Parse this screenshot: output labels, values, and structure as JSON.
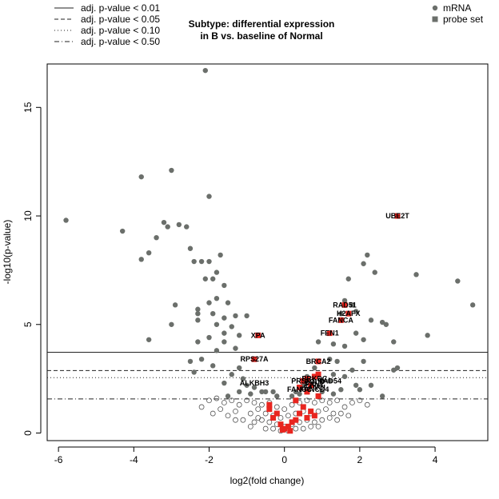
{
  "chart_data": {
    "type": "scatter",
    "title_lines": [
      "Subtype: differential expression",
      "in B vs. baseline of Normal"
    ],
    "xlabel": "log2(fold change)",
    "ylabel": "-log10(p-value)",
    "xlim": [
      -6.3,
      5.4
    ],
    "ylim": [
      -0.35,
      17.0
    ],
    "xticks": [
      "-6",
      "-4",
      "-2",
      "0",
      "2",
      "4"
    ],
    "yticks": [
      "0",
      "5",
      "10",
      "15"
    ],
    "threshold_legend": {
      "position": "top-left",
      "entries": [
        {
          "label": "adj. p-value < 0.01",
          "style": "solid"
        },
        {
          "label": "adj. p-value < 0.05",
          "style": "dashed"
        },
        {
          "label": "adj. p-value < 0.10",
          "style": "dotted"
        },
        {
          "label": "adj. p-value < 0.50",
          "style": "dotdash"
        }
      ]
    },
    "threshold_lines": [
      {
        "y": 3.72,
        "style": "solid"
      },
      {
        "y": 2.88,
        "style": "dashed"
      },
      {
        "y": 2.55,
        "style": "dotted"
      },
      {
        "y": 1.57,
        "style": "dotdash"
      }
    ],
    "type_legend": {
      "position": "top-right",
      "entries": [
        {
          "label": "mRNA",
          "marker": "circle"
        },
        {
          "label": "probe set",
          "marker": "square"
        }
      ]
    },
    "colors": {
      "mrna_filled": "#6b6f6b",
      "mrna_open": "#555555",
      "highlight": "#e8251f",
      "axis": "#000000"
    },
    "series": [
      {
        "name": "mRNA",
        "marker": "circle",
        "points": [
          [
            -2.1,
            16.7
          ],
          [
            -5.8,
            9.8
          ],
          [
            -3.8,
            11.8
          ],
          [
            -3.0,
            12.1
          ],
          [
            -2.0,
            10.9
          ],
          [
            -4.3,
            9.3
          ],
          [
            -3.2,
            9.7
          ],
          [
            -3.1,
            9.5
          ],
          [
            -2.8,
            9.6
          ],
          [
            -2.6,
            9.5
          ],
          [
            -3.4,
            9.0
          ],
          [
            -3.6,
            8.3
          ],
          [
            -3.8,
            8.0
          ],
          [
            -2.5,
            8.5
          ],
          [
            -1.7,
            8.2
          ],
          [
            -2.4,
            7.9
          ],
          [
            -2.2,
            7.9
          ],
          [
            -2.0,
            7.9
          ],
          [
            -1.8,
            7.4
          ],
          [
            -2.1,
            7.1
          ],
          [
            -1.9,
            7.1
          ],
          [
            -1.6,
            6.8
          ],
          [
            -1.8,
            6.2
          ],
          [
            -2.0,
            6.0
          ],
          [
            -2.9,
            5.9
          ],
          [
            -1.5,
            6.0
          ],
          [
            -2.3,
            5.7
          ],
          [
            -1.9,
            5.5
          ],
          [
            -2.3,
            5.5
          ],
          [
            -1.6,
            5.3
          ],
          [
            -1.3,
            5.4
          ],
          [
            -1.0,
            5.4
          ],
          [
            -2.3,
            5.2
          ],
          [
            -1.8,
            5.0
          ],
          [
            -1.4,
            4.9
          ],
          [
            -3.0,
            5.0
          ],
          [
            -1.6,
            4.6
          ],
          [
            -1.2,
            4.5
          ],
          [
            -2.0,
            4.4
          ],
          [
            -1.6,
            4.2
          ],
          [
            -2.3,
            4.2
          ],
          [
            -3.6,
            4.3
          ],
          [
            -1.3,
            3.9
          ],
          [
            -1.8,
            3.8
          ],
          [
            -2.5,
            3.3
          ],
          [
            -2.2,
            3.4
          ],
          [
            -1.9,
            3.1
          ],
          [
            -1.2,
            3.0
          ],
          [
            -2.4,
            2.8
          ],
          [
            -1.4,
            2.7
          ],
          [
            -1.1,
            2.5
          ],
          [
            -1.6,
            2.3
          ],
          [
            -1.0,
            2.2
          ],
          [
            -0.8,
            2.1
          ],
          [
            -1.2,
            1.9
          ],
          [
            -0.9,
            1.8
          ],
          [
            -0.6,
            1.9
          ],
          [
            -1.5,
            1.7
          ],
          [
            2.2,
            8.2
          ],
          [
            2.1,
            7.8
          ],
          [
            2.4,
            7.4
          ],
          [
            1.7,
            7.1
          ],
          [
            3.5,
            7.3
          ],
          [
            4.6,
            7.0
          ],
          [
            5.0,
            5.9
          ],
          [
            1.6,
            6.1
          ],
          [
            1.8,
            5.9
          ],
          [
            1.5,
            5.5
          ],
          [
            1.9,
            5.6
          ],
          [
            2.3,
            5.2
          ],
          [
            2.6,
            5.1
          ],
          [
            2.7,
            5.0
          ],
          [
            3.8,
            4.5
          ],
          [
            2.9,
            4.2
          ],
          [
            1.9,
            4.6
          ],
          [
            2.1,
            4.3
          ],
          [
            1.6,
            4.0
          ],
          [
            1.3,
            4.1
          ],
          [
            0.9,
            4.2
          ],
          [
            1.2,
            3.4
          ],
          [
            1.4,
            3.3
          ],
          [
            2.1,
            3.3
          ],
          [
            3.0,
            3.0
          ],
          [
            2.9,
            2.9
          ],
          [
            1.8,
            2.9
          ],
          [
            1.6,
            2.6
          ],
          [
            1.3,
            2.7
          ],
          [
            1.2,
            2.4
          ],
          [
            1.9,
            2.2
          ],
          [
            2.0,
            2.0
          ],
          [
            2.3,
            2.2
          ],
          [
            1.5,
            2.0
          ],
          [
            1.0,
            1.9
          ],
          [
            1.3,
            1.8
          ],
          [
            2.6,
            1.7
          ],
          [
            0.8,
            3.0
          ],
          [
            0.6,
            2.6
          ],
          [
            0.5,
            2.2
          ],
          [
            1.0,
            2.4
          ],
          [
            0.4,
            1.8
          ],
          [
            -0.5,
            1.9
          ],
          [
            -0.3,
            1.9
          ],
          [
            -0.2,
            1.7
          ],
          [
            0.2,
            1.7
          ],
          [
            0.3,
            1.9
          ]
        ],
        "open_points": [
          [
            -2.0,
            1.5
          ],
          [
            -1.8,
            1.6
          ],
          [
            -1.6,
            1.4
          ],
          [
            -1.4,
            1.5
          ],
          [
            -1.2,
            1.3
          ],
          [
            -1.0,
            1.5
          ],
          [
            -0.8,
            1.4
          ],
          [
            -0.6,
            1.3
          ],
          [
            -0.4,
            1.4
          ],
          [
            -0.2,
            1.2
          ],
          [
            0.0,
            1.1
          ],
          [
            0.2,
            1.3
          ],
          [
            0.4,
            1.4
          ],
          [
            0.6,
            1.5
          ],
          [
            0.8,
            1.4
          ],
          [
            1.0,
            1.5
          ],
          [
            1.2,
            1.4
          ],
          [
            1.4,
            1.5
          ],
          [
            1.6,
            1.2
          ],
          [
            1.8,
            1.4
          ],
          [
            2.0,
            1.5
          ],
          [
            -1.7,
            1.1
          ],
          [
            -1.3,
            1.0
          ],
          [
            -0.9,
            0.9
          ],
          [
            -0.7,
            1.1
          ],
          [
            -0.5,
            0.9
          ],
          [
            -0.3,
            0.8
          ],
          [
            -0.1,
            0.7
          ],
          [
            0.1,
            0.8
          ],
          [
            0.3,
            0.9
          ],
          [
            0.5,
            1.0
          ],
          [
            0.7,
            0.9
          ],
          [
            0.9,
            1.0
          ],
          [
            1.1,
            1.1
          ],
          [
            1.3,
            0.9
          ],
          [
            1.5,
            0.9
          ],
          [
            -1.1,
            0.6
          ],
          [
            -0.8,
            0.5
          ],
          [
            -0.6,
            0.6
          ],
          [
            -0.4,
            0.5
          ],
          [
            -0.2,
            0.4
          ],
          [
            0.0,
            0.3
          ],
          [
            0.2,
            0.4
          ],
          [
            0.4,
            0.5
          ],
          [
            0.6,
            0.6
          ],
          [
            0.8,
            0.5
          ],
          [
            1.0,
            0.6
          ],
          [
            1.2,
            0.7
          ],
          [
            -0.5,
            0.2
          ],
          [
            -0.3,
            0.2
          ],
          [
            -0.1,
            0.1
          ],
          [
            0.1,
            0.1
          ],
          [
            0.3,
            0.2
          ],
          [
            0.5,
            0.2
          ],
          [
            -1.5,
            0.8
          ],
          [
            -1.3,
            0.6
          ],
          [
            1.4,
            0.6
          ],
          [
            1.7,
            0.8
          ],
          [
            -2.2,
            1.2
          ],
          [
            2.2,
            1.3
          ],
          [
            -0.9,
            0.3
          ],
          [
            0.9,
            0.3
          ],
          [
            -0.7,
            0.7
          ],
          [
            0.7,
            0.3
          ],
          [
            -1.9,
            0.9
          ]
        ]
      },
      {
        "name": "probe set",
        "marker": "square",
        "points": [
          [
            3.0,
            10.0
          ],
          [
            1.6,
            5.9
          ],
          [
            1.7,
            5.5
          ],
          [
            1.5,
            5.2
          ],
          [
            1.2,
            4.6
          ],
          [
            -0.7,
            4.5
          ],
          [
            -0.8,
            3.4
          ],
          [
            0.9,
            3.3
          ],
          [
            0.9,
            2.7
          ],
          [
            0.8,
            2.6
          ],
          [
            0.6,
            2.5
          ],
          [
            0.5,
            2.4
          ],
          [
            0.7,
            2.2
          ],
          [
            0.4,
            2.1
          ],
          [
            0.6,
            1.9
          ],
          [
            0.9,
            1.7
          ],
          [
            0.3,
            1.5
          ],
          [
            0.5,
            1.2
          ],
          [
            0.4,
            0.9
          ],
          [
            0.6,
            0.7
          ],
          [
            0.3,
            0.6
          ],
          [
            0.2,
            0.5
          ],
          [
            0.1,
            0.3
          ],
          [
            0.0,
            0.2
          ],
          [
            -0.1,
            0.4
          ],
          [
            -0.3,
            0.7
          ],
          [
            -0.4,
            1.1
          ],
          [
            -0.2,
            0.9
          ],
          [
            0.15,
            0.1
          ],
          [
            -0.05,
            0.15
          ],
          [
            0.8,
            0.8
          ],
          [
            0.7,
            1.0
          ],
          [
            -0.4,
            1.3
          ]
        ]
      }
    ],
    "annotations": [
      {
        "text": "UBE2T",
        "x": 3.0,
        "y": 10.0
      },
      {
        "text": "RAD51",
        "x": 1.6,
        "y": 5.9
      },
      {
        "text": "H2AFX",
        "x": 1.7,
        "y": 5.5
      },
      {
        "text": "FANCA",
        "x": 1.5,
        "y": 5.2
      },
      {
        "text": "FEN1",
        "x": 1.2,
        "y": 4.6
      },
      {
        "text": "XPA",
        "x": -0.7,
        "y": 4.5
      },
      {
        "text": "RPS27A",
        "x": -0.8,
        "y": 3.4
      },
      {
        "text": "BRCA2",
        "x": 0.9,
        "y": 3.3
      },
      {
        "text": "ALKBH3",
        "x": -0.8,
        "y": 2.3
      },
      {
        "text": "PRKDC",
        "x": 0.8,
        "y": 2.5
      },
      {
        "text": "FAN1",
        "x": 0.8,
        "y": 2.25
      },
      {
        "text": "PRSD1",
        "x": 0.5,
        "y": 2.4
      },
      {
        "text": "POLD",
        "x": 0.8,
        "y": 2.35
      },
      {
        "text": "FANCI",
        "x": 0.8,
        "y": 2.1
      },
      {
        "text": "RAD54",
        "x": 1.2,
        "y": 2.4
      },
      {
        "text": "FANCC",
        "x": 0.4,
        "y": 2.0
      },
      {
        "text": "FANCD4",
        "x": 0.8,
        "y": 2.0
      }
    ]
  }
}
